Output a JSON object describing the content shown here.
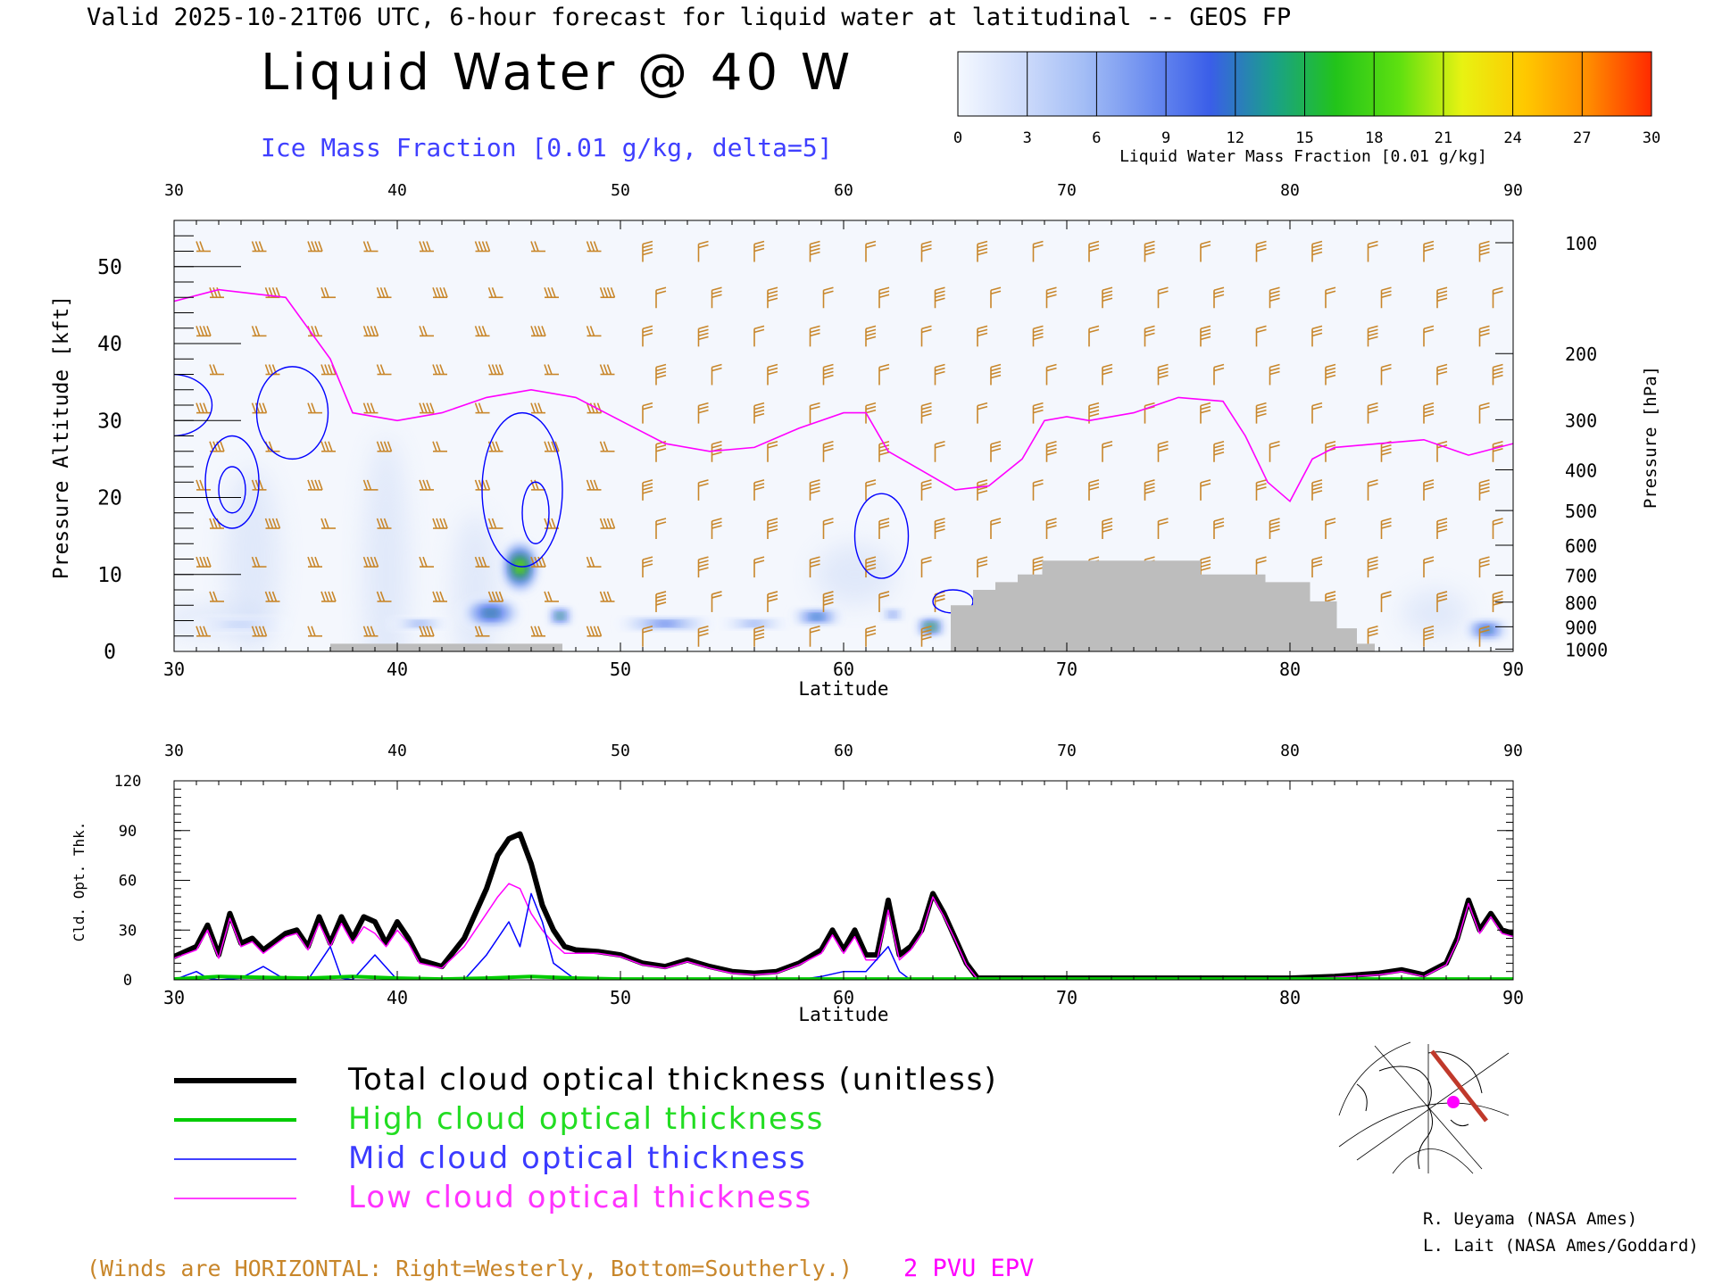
{
  "header": {
    "valid_line": "Valid 2025-10-21T06 UTC, 6-hour forecast for liquid water at latitudinal -- GEOS FP",
    "title": "Liquid Water @ 40 W",
    "subtitle": "Ice Mass Fraction [0.01 g/kg, delta=5]"
  },
  "colorbar": {
    "ticks": [
      "0",
      "3",
      "6",
      "9",
      "12",
      "15",
      "18",
      "21",
      "24",
      "27",
      "30"
    ],
    "label": "Liquid Water Mass Fraction [0.01 g/kg]",
    "colors": [
      "#f4f8ff",
      "#cfdcfb",
      "#a3bdf5",
      "#6e8ff0",
      "#3a5ee8",
      "#1aa08a",
      "#22c41a",
      "#5ee010",
      "#e8f212",
      "#ffc800",
      "#ff8c00",
      "#ff2a00"
    ]
  },
  "chart_data": [
    {
      "type": "heatmap",
      "xlabel": "Latitude",
      "ylabel": "Pressure Altitude [kft]",
      "y2label": "Pressure [hPa]",
      "xlim": [
        30,
        90
      ],
      "ylim": [
        0,
        56
      ],
      "x_ticks": [
        "30",
        "40",
        "50",
        "60",
        "70",
        "80",
        "90"
      ],
      "y_ticks": [
        "0",
        "10",
        "20",
        "30",
        "40",
        "50"
      ],
      "pressure_ticks": [
        {
          "label": "100",
          "kft": 53.1
        },
        {
          "label": "200",
          "kft": 38.7
        },
        {
          "label": "300",
          "kft": 30.1
        },
        {
          "label": "400",
          "kft": 23.6
        },
        {
          "label": "500",
          "kft": 18.3
        },
        {
          "label": "600",
          "kft": 13.8
        },
        {
          "label": "700",
          "kft": 9.9
        },
        {
          "label": "800",
          "kft": 6.4
        },
        {
          "label": "900",
          "kft": 3.2
        },
        {
          "label": "1000",
          "kft": 0.3
        }
      ],
      "pv2_line": [
        [
          30,
          45.5
        ],
        [
          32,
          47
        ],
        [
          35,
          46
        ],
        [
          37,
          38
        ],
        [
          38,
          31
        ],
        [
          40,
          30
        ],
        [
          42,
          31
        ],
        [
          44,
          33
        ],
        [
          46,
          34
        ],
        [
          48,
          33
        ],
        [
          50,
          30
        ],
        [
          52,
          27
        ],
        [
          54,
          26
        ],
        [
          56,
          26.5
        ],
        [
          58,
          29
        ],
        [
          60,
          31
        ],
        [
          61,
          31
        ],
        [
          62,
          26
        ],
        [
          63.5,
          23.5
        ],
        [
          65,
          21
        ],
        [
          66.5,
          21.5
        ],
        [
          68,
          25
        ],
        [
          69,
          30
        ],
        [
          70,
          30.5
        ],
        [
          71,
          30
        ],
        [
          73,
          31
        ],
        [
          75,
          33
        ],
        [
          77,
          32.5
        ],
        [
          78,
          28
        ],
        [
          79,
          22
        ],
        [
          80,
          19.5
        ],
        [
          81,
          25
        ],
        [
          82,
          26.5
        ],
        [
          84,
          27
        ],
        [
          86,
          27.5
        ],
        [
          88,
          25.5
        ],
        [
          90,
          27
        ]
      ],
      "terrain": [
        [
          64.8,
          0
        ],
        [
          64.8,
          6
        ],
        [
          65.8,
          6
        ],
        [
          65.8,
          8
        ],
        [
          66.8,
          8
        ],
        [
          66.8,
          9
        ],
        [
          67.8,
          9
        ],
        [
          67.8,
          10
        ],
        [
          68.9,
          10
        ],
        [
          68.9,
          11.8
        ],
        [
          76.0,
          11.8
        ],
        [
          76.0,
          10
        ],
        [
          78.9,
          10
        ],
        [
          78.9,
          9
        ],
        [
          80.9,
          9
        ],
        [
          80.9,
          6.5
        ],
        [
          82.1,
          6.5
        ],
        [
          82.1,
          3
        ],
        [
          83.0,
          3
        ],
        [
          83.0,
          1
        ],
        [
          83.8,
          1
        ],
        [
          83.8,
          0
        ]
      ],
      "terrain_low": [
        [
          37.0,
          0
        ],
        [
          37.0,
          1
        ],
        [
          47.4,
          1
        ],
        [
          47.4,
          0
        ]
      ],
      "liquid_blobs": [
        {
          "lat": 45.5,
          "kft": 11,
          "rx": 0.8,
          "ry": 3.5,
          "value": 22
        },
        {
          "lat": 44.2,
          "kft": 5,
          "rx": 1.4,
          "ry": 1.8,
          "value": 16
        },
        {
          "lat": 47.3,
          "kft": 4.6,
          "rx": 0.5,
          "ry": 1,
          "value": 18
        },
        {
          "lat": 52,
          "kft": 3.6,
          "rx": 2.5,
          "ry": 0.7,
          "value": 12
        },
        {
          "lat": 58.8,
          "kft": 4.5,
          "rx": 1.2,
          "ry": 0.9,
          "value": 14
        },
        {
          "lat": 56,
          "kft": 3.6,
          "rx": 1.8,
          "ry": 0.6,
          "value": 10
        },
        {
          "lat": 62.2,
          "kft": 4.8,
          "rx": 0.5,
          "ry": 0.7,
          "value": 11
        },
        {
          "lat": 63.9,
          "kft": 3.2,
          "rx": 0.6,
          "ry": 1,
          "value": 20
        },
        {
          "lat": 88.8,
          "kft": 2.8,
          "rx": 1,
          "ry": 1.2,
          "value": 16
        },
        {
          "lat": 33,
          "kft": 3.5,
          "rx": 2.5,
          "ry": 0.7,
          "value": 7
        },
        {
          "lat": 41,
          "kft": 3.6,
          "rx": 1.5,
          "ry": 0.6,
          "value": 8
        }
      ],
      "ice_contours": [
        {
          "lat": 32.6,
          "kft": 22,
          "rx": 1.2,
          "ry": 6
        },
        {
          "lat": 32.6,
          "kft": 21,
          "rx": 0.6,
          "ry": 3
        },
        {
          "lat": 45.6,
          "kft": 21,
          "rx": 1.8,
          "ry": 10
        },
        {
          "lat": 46.2,
          "kft": 18,
          "rx": 0.6,
          "ry": 4
        },
        {
          "lat": 61.7,
          "kft": 15,
          "rx": 1.2,
          "ry": 5.5
        },
        {
          "lat": 29.9,
          "kft": 32,
          "rx": 1.8,
          "ry": 4
        },
        {
          "lat": 35.3,
          "kft": 31,
          "rx": 1.6,
          "ry": 6
        },
        {
          "lat": 64.9,
          "kft": 6.5,
          "rx": 0.9,
          "ry": 1.5
        }
      ]
    },
    {
      "type": "line",
      "xlabel": "Latitude",
      "ylabel": "Cld. Opt. Thk.",
      "xlim": [
        30,
        90
      ],
      "ylim": [
        0,
        120
      ],
      "x_ticks": [
        "30",
        "40",
        "50",
        "60",
        "70",
        "80",
        "90"
      ],
      "y_ticks": [
        "0",
        "30",
        "60",
        "90",
        "120"
      ],
      "series": [
        {
          "name": "Total cloud optical thickness (unitless)",
          "color": "#000000",
          "width": 6,
          "x": [
            30,
            31,
            31.5,
            32,
            32.5,
            33,
            33.5,
            34,
            35,
            35.5,
            36,
            36.5,
            37,
            37.5,
            38,
            38.5,
            39,
            39.5,
            40,
            40.5,
            41,
            42,
            43,
            44,
            44.5,
            45,
            45.5,
            46,
            46.5,
            47,
            47.5,
            48,
            49,
            50,
            51,
            52,
            53,
            54,
            55,
            56,
            57,
            58,
            59,
            59.5,
            60,
            60.5,
            61,
            61.5,
            62,
            62.5,
            63,
            63.5,
            64,
            64.5,
            65,
            65.5,
            66,
            70,
            75,
            80,
            82,
            84,
            85,
            86,
            87,
            87.5,
            88,
            88.5,
            89,
            89.5,
            90
          ],
          "y": [
            14,
            20,
            33,
            15,
            40,
            22,
            25,
            18,
            28,
            30,
            20,
            38,
            22,
            38,
            25,
            38,
            35,
            22,
            35,
            25,
            12,
            8,
            25,
            55,
            75,
            85,
            88,
            70,
            45,
            30,
            20,
            18,
            17,
            15,
            10,
            8,
            12,
            8,
            5,
            4,
            5,
            10,
            18,
            30,
            18,
            30,
            15,
            15,
            48,
            15,
            20,
            30,
            52,
            40,
            25,
            10,
            1,
            1,
            1,
            1,
            2,
            4,
            6,
            3,
            10,
            25,
            48,
            30,
            40,
            30,
            28
          ]
        },
        {
          "name": "High cloud optical thickness",
          "color": "#00cc00",
          "width": 4,
          "x": [
            30,
            32,
            34,
            36,
            38,
            40,
            42,
            44,
            46,
            48,
            50,
            55,
            60,
            65,
            70,
            75,
            80,
            85,
            90
          ],
          "y": [
            0.5,
            2,
            1.5,
            1,
            2,
            1,
            0.5,
            1,
            2,
            1,
            0.5,
            0.5,
            0.5,
            0.5,
            0.5,
            0.5,
            0.5,
            0.5,
            0.5
          ]
        },
        {
          "name": "Mid cloud optical thickness",
          "color": "#0000ff",
          "width": 1.5,
          "x": [
            30,
            31,
            31.5,
            32,
            33,
            34,
            35,
            36,
            37,
            37.5,
            38,
            39,
            40,
            41,
            42,
            43,
            44,
            45,
            45.5,
            46,
            46.5,
            47,
            48,
            50,
            55,
            58,
            59,
            60,
            61,
            62,
            62.5,
            63,
            64,
            65,
            70,
            80,
            90
          ],
          "y": [
            0,
            5,
            1,
            0,
            1,
            8,
            0,
            0,
            20,
            1,
            0,
            15,
            0,
            0,
            0,
            0,
            15,
            35,
            20,
            52,
            35,
            10,
            0,
            0,
            0,
            0,
            2,
            5,
            5,
            20,
            5,
            0,
            0,
            0,
            0,
            0,
            0
          ]
        },
        {
          "name": "Low cloud optical thickness",
          "color": "#ff00ff",
          "width": 1.5,
          "x": [
            30,
            31,
            31.5,
            32,
            32.5,
            33,
            33.5,
            34,
            35,
            35.5,
            36,
            36.5,
            37,
            37.5,
            38,
            38.5,
            39,
            39.5,
            40,
            40.5,
            41,
            42,
            43,
            44,
            44.5,
            45,
            45.5,
            46,
            46.5,
            47,
            47.5,
            48,
            49,
            50,
            51,
            52,
            53,
            54,
            55,
            56,
            57,
            58,
            59,
            59.5,
            60,
            60.5,
            61,
            61.5,
            62,
            62.5,
            63,
            63.5,
            64,
            64.5,
            65,
            65.5,
            66,
            70,
            75,
            80,
            82,
            84,
            85,
            86,
            87,
            87.5,
            88,
            88.5,
            89,
            89.5,
            90
          ],
          "y": [
            13,
            18,
            30,
            13,
            37,
            20,
            23,
            16,
            26,
            28,
            18,
            34,
            20,
            34,
            22,
            32,
            28,
            20,
            30,
            22,
            10,
            7,
            20,
            40,
            50,
            58,
            55,
            40,
            30,
            22,
            16,
            16,
            16,
            14,
            9,
            7,
            11,
            7,
            4,
            3,
            4,
            9,
            16,
            27,
            16,
            26,
            12,
            12,
            42,
            12,
            18,
            28,
            50,
            38,
            24,
            9,
            0.5,
            0.5,
            0.5,
            0.5,
            1.5,
            3,
            5,
            2,
            9,
            23,
            46,
            28,
            38,
            28,
            26
          ]
        }
      ]
    }
  ],
  "legend": [
    {
      "label": "Total cloud optical thickness (unitless)",
      "color": "#000000",
      "width": 6
    },
    {
      "label": "High cloud optical thickness",
      "color": "#00cc00",
      "width": 4
    },
    {
      "label": "Mid cloud optical thickness",
      "color": "#0000ff",
      "width": 1.5
    },
    {
      "label": "Low cloud optical thickness",
      "color": "#ff00ff",
      "width": 1.5
    }
  ],
  "footer": {
    "winds_note": "(Winds are HORIZONTAL: Right=Westerly, Bottom=Southerly.)",
    "epv_label": "2 PVU EPV",
    "credit1": "R. Ueyama (NASA Ames)",
    "credit2": "L. Lait (NASA Ames/Goddard)"
  },
  "colors": {
    "wind_barbs": "#c8862a",
    "pv_line": "#ff00ff",
    "ice_contour": "#0000ff",
    "terrain": "#bdbdbd",
    "subtitle": "#3f3fff"
  }
}
